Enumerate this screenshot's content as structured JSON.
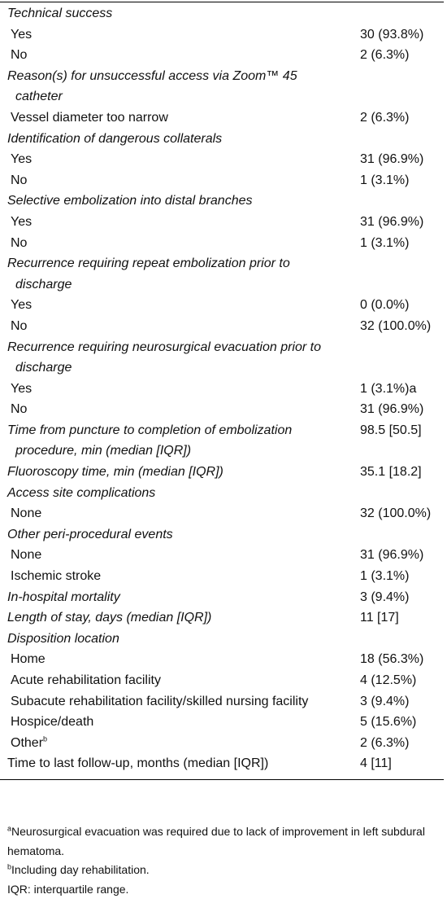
{
  "table": {
    "sections": [
      {
        "title": "Technical success",
        "items": [
          {
            "label": "Yes",
            "value": "30 (93.8%)"
          },
          {
            "label": "No",
            "value": "2 (6.3%)"
          }
        ]
      },
      {
        "title": "Reason(s) for unsuccessful access via Zoom™ 45 catheter",
        "items": [
          {
            "label": "Vessel diameter too narrow",
            "value": "2 (6.3%)"
          }
        ]
      },
      {
        "title": "Identification of dangerous collaterals",
        "items": [
          {
            "label": "Yes",
            "value": "31 (96.9%)"
          },
          {
            "label": "No",
            "value": "1 (3.1%)"
          }
        ]
      },
      {
        "title": "Selective embolization into distal branches",
        "items": [
          {
            "label": "Yes",
            "value": "31 (96.9%)"
          },
          {
            "label": "No",
            "value": "1 (3.1%)"
          }
        ]
      },
      {
        "title": "Recurrence requiring repeat embolization prior to discharge",
        "items": [
          {
            "label": "Yes",
            "value": "0 (0.0%)"
          },
          {
            "label": "No",
            "value": "32 (100.0%)"
          }
        ]
      },
      {
        "title": "Recurrence requiring neurosurgical evacuation prior to discharge",
        "items": [
          {
            "label": "Yes",
            "value": "1 (3.1%)a"
          },
          {
            "label": "No",
            "value": "31 (96.9%)"
          }
        ]
      },
      {
        "title": "Time from puncture to completion of embolization procedure, min (median [IQR])",
        "value": "98.5 [50.5]"
      },
      {
        "title": "Fluoroscopy time, min (median [IQR])",
        "value": "35.1 [18.2]"
      },
      {
        "title": "Access site complications",
        "items": [
          {
            "label": "None",
            "value": "32 (100.0%)"
          }
        ]
      },
      {
        "title": "Other peri-procedural events",
        "items": [
          {
            "label": "None",
            "value": "31 (96.9%)"
          },
          {
            "label": "Ischemic stroke",
            "value": "1 (3.1%)"
          }
        ]
      },
      {
        "title": "In-hospital mortality",
        "value": "3 (9.4%)"
      },
      {
        "title": "Length of stay, days (median [IQR])",
        "value": "11 [17]"
      },
      {
        "title": "Disposition location",
        "items": [
          {
            "label": "Home",
            "value": "18 (56.3%)"
          },
          {
            "label": "Acute rehabilitation facility",
            "value": "4 (12.5%)"
          },
          {
            "label": "Subacute rehabilitation facility/skilled nursing facility",
            "value": "3 (9.4%)"
          },
          {
            "label": "Hospice/death",
            "value": "5 (15.6%)"
          },
          {
            "label": "Other",
            "note": "b",
            "value": "2 (6.3%)"
          }
        ]
      }
    ],
    "last_row": {
      "label": "Time to last follow-up, months (median [IQR])",
      "value": "4 [11]"
    },
    "footnotes": [
      {
        "mark": "a",
        "text": "Neurosurgical evacuation was required due to lack of improvement in left subdural hematoma."
      },
      {
        "mark": "b",
        "text": "Including day rehabilitation."
      },
      {
        "text": "IQR: interquartile range."
      }
    ]
  }
}
